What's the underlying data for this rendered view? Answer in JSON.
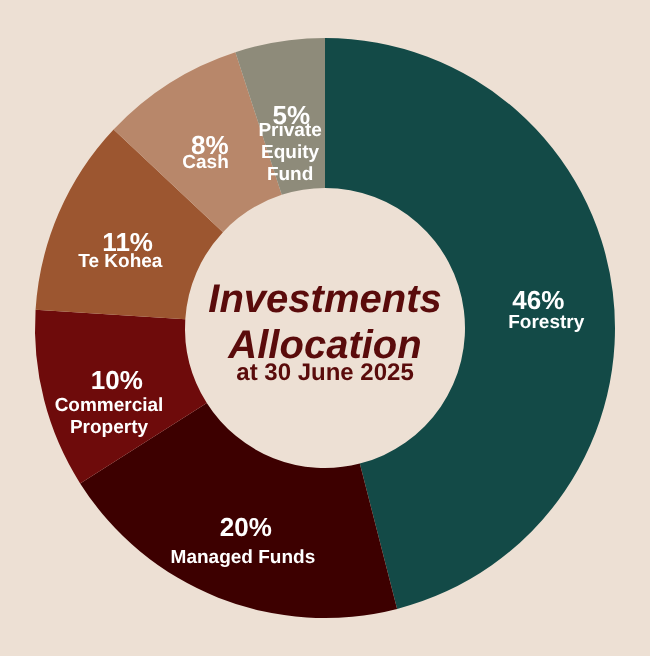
{
  "chart_data": {
    "type": "donut",
    "title": "Investments Allocation",
    "subtitle": "at 30 June 2025",
    "categories": [
      "Forestry",
      "Managed Funds",
      "Commercial Property",
      "Te Kohea",
      "Cash",
      "Private Equity Fund"
    ],
    "values": [
      46,
      20,
      10,
      11,
      8,
      5
    ],
    "colors": [
      "#134a47",
      "#3d0000",
      "#6e0b0b",
      "#9c5630",
      "#b8876a",
      "#8e8b7a"
    ],
    "value_labels": [
      "46%",
      "20%",
      "10%",
      "11%",
      "8%",
      "5%"
    ]
  }
}
